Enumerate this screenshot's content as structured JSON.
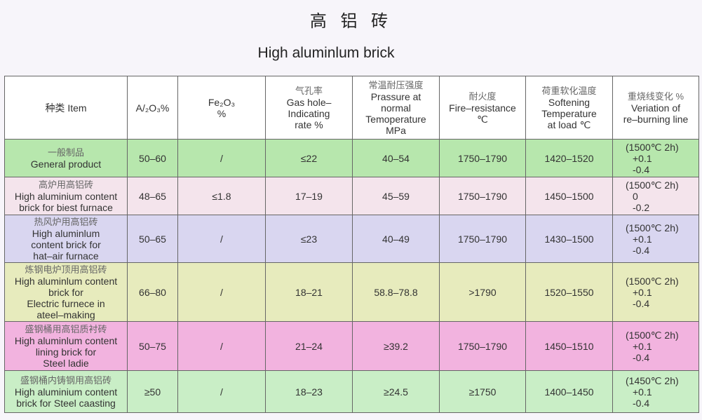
{
  "title_cn": "高 铝 砖",
  "title_en": "High aluminlum brick",
  "headers": [
    {
      "cn": "",
      "en": [
        "种类 Item"
      ]
    },
    {
      "cn": "",
      "en": [
        "A/₂O₃%"
      ]
    },
    {
      "cn": "",
      "en": [
        "Fe₂O₃",
        "%"
      ]
    },
    {
      "cn": "气孔率",
      "en": [
        "Gas hole–",
        "Indicating",
        "rate %"
      ]
    },
    {
      "cn": "常温耐压强度",
      "en": [
        "Prassure at",
        "normal",
        "Temoperature",
        "MPa"
      ]
    },
    {
      "cn": "耐火度",
      "en": [
        "Fire–resistance",
        "℃"
      ]
    },
    {
      "cn": "荷重软化温度",
      "en": [
        "Softening",
        "Temperature",
        "at load ℃"
      ]
    },
    {
      "cn": "重烧线变化 %",
      "en": [
        "Veriation of",
        "re–burning line"
      ]
    }
  ],
  "rows": [
    {
      "cn": "一般制品",
      "en": [
        "General product"
      ],
      "al2o3": "50–60",
      "fe2o3": "/",
      "gas": "≤22",
      "pressure": "40–54",
      "fire": "1750–1790",
      "soft": "1420–1520",
      "rebuild": [
        "(1500℃ 2h)",
        "+0.1",
        "-0.4"
      ]
    },
    {
      "cn": "高炉用高铝砖",
      "en": [
        "High aluminium content",
        "brick for biest furnace"
      ],
      "al2o3": "48–65",
      "fe2o3": "≤1.8",
      "gas": "17–19",
      "pressure": "45–59",
      "fire": "1750–1790",
      "soft": "1450–1500",
      "rebuild": [
        "(1500℃ 2h)",
        "0",
        "-0.2"
      ]
    },
    {
      "cn": "热风炉用高铝砖",
      "en": [
        "High aluminlum",
        "content brick for",
        "hat–air furnace"
      ],
      "al2o3": "50–65",
      "fe2o3": "/",
      "gas": "≤23",
      "pressure": "40–49",
      "fire": "1750–1790",
      "soft": "1430–1500",
      "rebuild": [
        "(1500℃ 2h)",
        "+0.1",
        "-0.4"
      ]
    },
    {
      "cn": "炼钢电炉顶用高铝砖",
      "en": [
        "High aluminlum content",
        "brick for",
        "Electric furnece in",
        "ateel–making"
      ],
      "al2o3": "66–80",
      "fe2o3": "/",
      "gas": "18–21",
      "pressure": "58.8–78.8",
      "fire": ">1790",
      "soft": "1520–1550",
      "rebuild": [
        "(1500℃ 2h)",
        "+0.1",
        "-0.4"
      ]
    },
    {
      "cn": "盛钢桶用高铝质衬砖",
      "en": [
        "High aluminlum content",
        "lining brick for",
        "Steel ladie"
      ],
      "al2o3": "50–75",
      "fe2o3": "/",
      "gas": "21–24",
      "pressure": "≥39.2",
      "fire": "1750–1790",
      "soft": "1450–1510",
      "rebuild": [
        "(1500℃ 2h)",
        "+0.1",
        "-0.4"
      ]
    },
    {
      "cn": "盛钢桶内铸钢用高铝砖",
      "en": [
        "High aluminium content",
        "brick for Steel caasting"
      ],
      "al2o3": "≥50",
      "fe2o3": "/",
      "gas": "18–23",
      "pressure": "≥24.5",
      "fire": "≥1750",
      "soft": "1400–1450",
      "rebuild": [
        "(1450℃ 2h)",
        "+0.1",
        "-0.4"
      ]
    }
  ]
}
